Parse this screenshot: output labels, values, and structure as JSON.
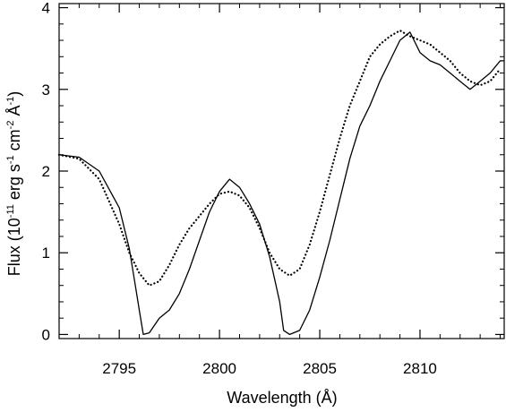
{
  "chart_data": {
    "type": "line",
    "title": "",
    "xlabel": "Wavelength (Å)",
    "ylabel": {
      "prefix": "Flux (10",
      "exp1": "-11",
      "mid1": " erg s",
      "exp2": "-1",
      "mid2": " cm",
      "exp3": "-2",
      "mid3": " Å",
      "exp4": "-1",
      "suffix": ")"
    },
    "xlim": [
      2792.0,
      2814.2
    ],
    "ylim": [
      -0.05,
      4.05
    ],
    "xticks": [
      2795,
      2800,
      2805,
      2810
    ],
    "xtick_labels": [
      "2795",
      "2800",
      "2805",
      "2810"
    ],
    "yticks": [
      0,
      1,
      2,
      3,
      4
    ],
    "ytick_labels": [
      "0",
      "1",
      "2",
      "3",
      "4"
    ],
    "grid": false,
    "legend": "none",
    "series": [
      {
        "style": "solid",
        "color": "#000000",
        "x": [
          2792.0,
          2793.0,
          2794.0,
          2795.0,
          2795.5,
          2795.8,
          2796.0,
          2796.2,
          2796.5,
          2797.0,
          2797.5,
          2798.0,
          2798.5,
          2799.0,
          2799.5,
          2800.0,
          2800.5,
          2801.0,
          2801.5,
          2802.0,
          2802.5,
          2803.0,
          2803.2,
          2803.5,
          2804.0,
          2804.5,
          2805.0,
          2805.5,
          2806.0,
          2806.5,
          2807.0,
          2807.5,
          2808.0,
          2808.5,
          2809.0,
          2809.5,
          2810.0,
          2810.5,
          2811.0,
          2811.5,
          2812.0,
          2812.5,
          2813.0,
          2813.5,
          2814.0,
          2814.2
        ],
        "y": [
          2.2,
          2.17,
          2.0,
          1.55,
          1.05,
          0.6,
          0.3,
          0.0,
          0.02,
          0.2,
          0.3,
          0.5,
          0.8,
          1.15,
          1.5,
          1.75,
          1.9,
          1.8,
          1.6,
          1.35,
          0.95,
          0.4,
          0.05,
          0.0,
          0.05,
          0.3,
          0.7,
          1.15,
          1.65,
          2.15,
          2.55,
          2.8,
          3.1,
          3.35,
          3.6,
          3.7,
          3.45,
          3.35,
          3.3,
          3.2,
          3.1,
          3.0,
          3.1,
          3.2,
          3.35,
          3.35
        ]
      },
      {
        "style": "dotted",
        "color": "#000000",
        "x": [
          2792.0,
          2793.0,
          2794.0,
          2795.0,
          2795.5,
          2796.0,
          2796.5,
          2797.0,
          2797.5,
          2798.0,
          2798.5,
          2799.0,
          2799.5,
          2800.0,
          2800.5,
          2801.0,
          2801.5,
          2802.0,
          2802.5,
          2803.0,
          2803.5,
          2804.0,
          2804.5,
          2805.0,
          2805.5,
          2806.0,
          2806.5,
          2807.0,
          2807.5,
          2808.0,
          2808.5,
          2809.0,
          2809.5,
          2810.0,
          2810.5,
          2811.0,
          2811.5,
          2812.0,
          2812.5,
          2813.0,
          2813.5,
          2814.0
        ],
        "y": [
          2.2,
          2.15,
          1.9,
          1.35,
          1.0,
          0.75,
          0.6,
          0.65,
          0.85,
          1.1,
          1.3,
          1.45,
          1.6,
          1.72,
          1.75,
          1.7,
          1.55,
          1.3,
          1.0,
          0.8,
          0.72,
          0.8,
          1.1,
          1.5,
          1.95,
          2.4,
          2.8,
          3.1,
          3.4,
          3.55,
          3.65,
          3.72,
          3.65,
          3.6,
          3.55,
          3.45,
          3.35,
          3.2,
          3.1,
          3.05,
          3.1,
          3.25
        ]
      }
    ]
  }
}
